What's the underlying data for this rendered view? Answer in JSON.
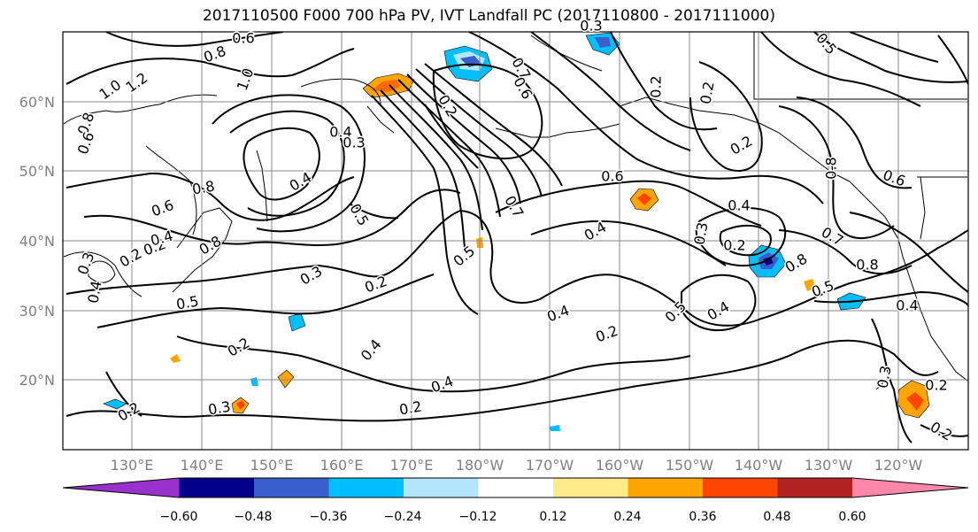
{
  "title": "2017110500 F000 700 hPa PV, IVT Landfall PC (2017110800 - 2017111000)",
  "lat_labels": [
    "60°N",
    "50°N",
    "40°N",
    "30°N",
    "20°N"
  ],
  "lon_labels": [
    "130°E",
    "140°E",
    "150°E",
    "160°E",
    "170°E",
    "180°W",
    "170°W",
    "160°W",
    "150°W",
    "140°W",
    "130°W",
    "120°W"
  ],
  "contour_labels": [
    {
      "text": "0.6"
    },
    {
      "text": "0.8"
    },
    {
      "text": "1.0"
    },
    {
      "text": "1.2"
    },
    {
      "text": "1.0"
    },
    {
      "text": "0.8"
    },
    {
      "text": "0.6"
    },
    {
      "text": "0.3"
    },
    {
      "text": "0.2"
    },
    {
      "text": "0.4"
    },
    {
      "text": "0.2"
    },
    {
      "text": "0.8"
    },
    {
      "text": "0.6"
    },
    {
      "text": "0.8"
    },
    {
      "text": "0.4"
    },
    {
      "text": "0.5"
    },
    {
      "text": "0.4"
    },
    {
      "text": "0.3"
    },
    {
      "text": "0.5"
    },
    {
      "text": "0.4"
    },
    {
      "text": "0.3"
    },
    {
      "text": "0.2"
    },
    {
      "text": "0.4"
    },
    {
      "text": "0.7"
    },
    {
      "text": "0.5"
    },
    {
      "text": "0.7"
    },
    {
      "text": "0.6"
    },
    {
      "text": "0.4"
    },
    {
      "text": "0.4"
    },
    {
      "text": "0.2"
    },
    {
      "text": "0.5"
    },
    {
      "text": "0.4"
    },
    {
      "text": "0.3"
    },
    {
      "text": "0.4"
    },
    {
      "text": "0.2"
    },
    {
      "text": "0.8"
    },
    {
      "text": "0.7"
    },
    {
      "text": "0.8"
    },
    {
      "text": "0.5"
    },
    {
      "text": "0.4"
    },
    {
      "text": "0.2"
    },
    {
      "text": "0.2"
    },
    {
      "text": "0.3"
    },
    {
      "text": "0.2"
    },
    {
      "text": "0.2"
    },
    {
      "text": "0.4"
    },
    {
      "text": "0.2"
    },
    {
      "text": "0.3"
    },
    {
      "text": "0.2"
    },
    {
      "text": "0.2"
    },
    {
      "text": "0.2"
    },
    {
      "text": "0.3"
    },
    {
      "text": "0.2"
    },
    {
      "text": "0.6"
    },
    {
      "text": "0.8"
    },
    {
      "text": "0.6"
    },
    {
      "text": "0.5"
    }
  ],
  "colorbar": {
    "colors": [
      "#9932cc",
      "#00008b",
      "#3a5fcd",
      "#00bfff",
      "#b3e5fc",
      "#ffffff",
      "#ffeb8a",
      "#ffa500",
      "#ff4500",
      "#b22222",
      "#ff88aa"
    ],
    "tick_labels": [
      "−0.60",
      "−0.48",
      "−0.36",
      "−0.24",
      "−0.12",
      "0.12",
      "0.24",
      "0.36",
      "0.48",
      "0.60"
    ]
  },
  "colors": {
    "grid": "#888888",
    "axis_label": "#808080",
    "contour": "#000000"
  }
}
